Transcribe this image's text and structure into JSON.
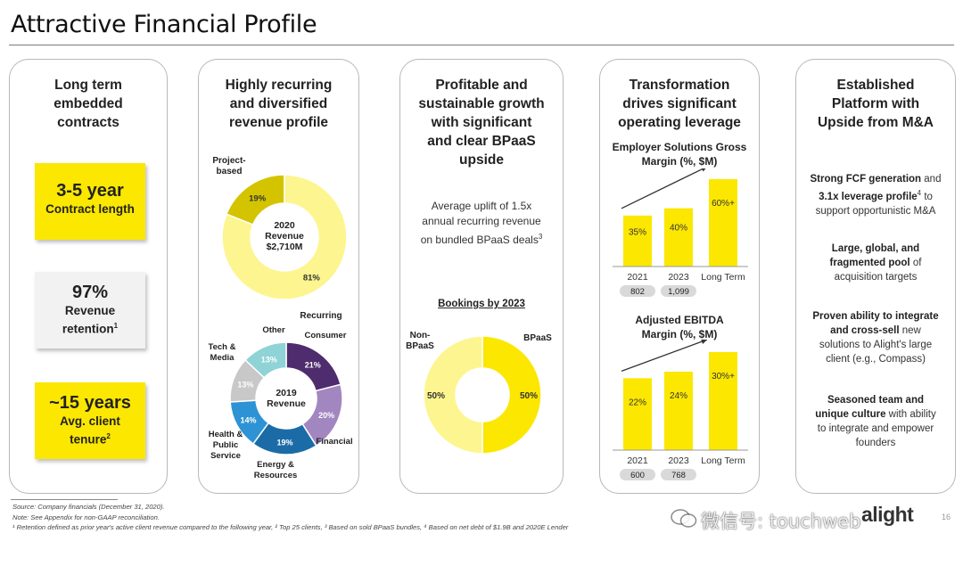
{
  "title": "Attractive Financial Profile",
  "panel1": {
    "heading": [
      "Long term",
      "embedded",
      "contracts"
    ],
    "kpis": [
      {
        "big": "3-5 year",
        "small": [
          "Contract length"
        ],
        "sup": ""
      },
      {
        "big": "97%",
        "small": [
          "Revenue",
          "retention"
        ],
        "sup": "1"
      },
      {
        "big": "~15 years",
        "small": [
          "Avg. client",
          "tenure"
        ],
        "sup": "2"
      }
    ]
  },
  "panel2": {
    "heading": [
      "Highly recurring",
      "and diversified",
      "revenue profile"
    ]
  },
  "panel3": {
    "heading": [
      "Profitable and",
      "sustainable growth",
      "with significant",
      "and clear BPaaS",
      "upside"
    ],
    "uplift_lines": [
      "Average uplift of 1.5x",
      "annual recurring revenue",
      "on bundled BPaaS deals"
    ],
    "uplift_sup": "3",
    "bookings_title": "Bookings by 2023"
  },
  "panel4": {
    "heading": [
      "Transformation",
      "drives significant",
      "operating leverage"
    ]
  },
  "panel5": {
    "heading": [
      "Established",
      "Platform with",
      "Upside from M&A"
    ],
    "items": [
      {
        "lines": [
          "Strong FCF generation and",
          "3.1x leverage profile⁴ to",
          "support opportunistic M&A"
        ]
      },
      {
        "lines": [
          "Large, global, and",
          "fragmented pool of",
          "acquisition targets"
        ]
      },
      {
        "lines": [
          "Proven ability to integrate",
          "and cross-sell new",
          "solutions to Alight's large",
          "client (e.g., Compass)"
        ]
      },
      {
        "lines": [
          "Seasoned team and",
          "unique culture with ability",
          "to integrate and empower",
          "founders"
        ]
      }
    ]
  },
  "chart_data": [
    {
      "type": "pie",
      "title": "2020 Revenue $2,710M",
      "center_label": [
        "2020",
        "Revenue",
        "$2,710M"
      ],
      "slices": [
        {
          "label": "Project-based",
          "value": 19,
          "color": "#d4c400"
        },
        {
          "label": "Recurring",
          "value": 81,
          "color": "#fdf58f"
        }
      ],
      "label_lines": {
        "Project-based": [
          "Project-",
          "based"
        ],
        "Recurring": [
          "Recurring"
        ]
      }
    },
    {
      "type": "pie",
      "title": "2019 Revenue",
      "center_label": [
        "2019",
        "Revenue"
      ],
      "slices": [
        {
          "label": "Consumer",
          "value": 21,
          "color": "#4e2c6e"
        },
        {
          "label": "Financial",
          "value": 20,
          "color": "#a286c0"
        },
        {
          "label": "Energy & Resources",
          "value": 19,
          "color": "#1b6ca6"
        },
        {
          "label": "Health & Public Service",
          "value": 14,
          "color": "#2d93d4"
        },
        {
          "label": "Tech & Media",
          "value": 13,
          "color": "#c8c8c8"
        },
        {
          "label": "Other",
          "value": 13,
          "color": "#8fd3d6"
        }
      ],
      "label_lines": {
        "Consumer": [
          "Consumer"
        ],
        "Financial": [
          "Financial"
        ],
        "Energy & Resources": [
          "Energy &",
          "Resources"
        ],
        "Health & Public Service": [
          "Health &",
          "Public",
          "Service"
        ],
        "Tech & Media": [
          "Tech &",
          "Media"
        ],
        "Other": [
          "Other"
        ]
      }
    },
    {
      "type": "pie",
      "title": "Bookings by 2023",
      "slices": [
        {
          "label": "BPaaS",
          "value": 50,
          "color": "#fbe700"
        },
        {
          "label": "Non-BPaaS",
          "value": 50,
          "color": "#fdf58f"
        }
      ],
      "label_lines": {
        "BPaaS": [
          "BPaaS"
        ],
        "Non-BPaaS": [
          "Non-",
          "BPaaS"
        ]
      }
    },
    {
      "type": "bar",
      "title": "Employer Solutions Gross Margin (%, $M)",
      "title_lines": [
        "Employer Solutions Gross",
        "Margin (%, $M)"
      ],
      "categories": [
        "2021",
        "2023",
        "Long Term"
      ],
      "values": [
        35,
        40,
        60
      ],
      "data_labels": [
        "35%",
        "40%",
        "60%+"
      ],
      "sublabels": [
        "802",
        "1,099"
      ],
      "ylim": [
        0,
        60
      ],
      "color": "#fbe700"
    },
    {
      "type": "bar",
      "title": "Adjusted EBITDA Margin (%, $M)",
      "title_lines": [
        "Adjusted EBITDA",
        "Margin (%, $M)"
      ],
      "categories": [
        "2021",
        "2023",
        "Long Term"
      ],
      "values": [
        22,
        24,
        30
      ],
      "data_labels": [
        "22%",
        "24%",
        "30%+"
      ],
      "sublabels": [
        "600",
        "768"
      ],
      "ylim": [
        0,
        30
      ],
      "color": "#fbe700"
    }
  ],
  "footnotes": [
    "Source: Company financials (December 31, 2020).",
    "Note: See Appendix for non-GAAP reconciliation.",
    "¹ Retention defined as prior year's active client revenue compared to the following year, ² Top 25 clients, ³ Based on sold BPaaS bundles, ⁴ Based on net debt of $1.9B and 2020E Lender"
  ],
  "logo": "alight",
  "page_number": "16",
  "watermark": "微信号: touchweb"
}
